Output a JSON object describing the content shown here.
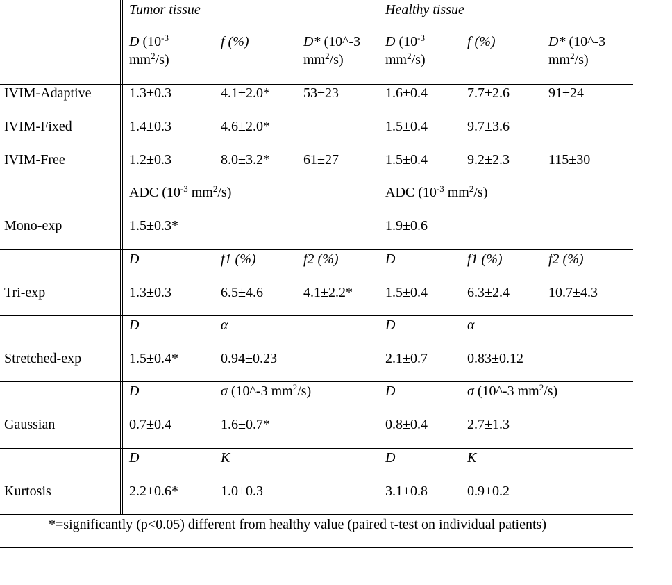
{
  "table": {
    "groups": [
      "Tumor tissue",
      "Healthy tissue"
    ],
    "sections": [
      {
        "header": [
          [
            {
              "text": "D",
              "style": "italic"
            },
            " (10",
            {
              "text": "-3",
              "style": "sup"
            },
            " mm",
            {
              "text": "2",
              "style": "sup"
            },
            "/s)"
          ],
          [
            {
              "text": "f (%)",
              "style": "italic"
            }
          ],
          [
            {
              "text": "D*",
              "style": "italic"
            },
            " (10^-3 mm",
            {
              "text": "2",
              "style": "sup"
            },
            "/s)"
          ],
          [
            {
              "text": "D",
              "style": "italic"
            },
            " (10",
            {
              "text": "-3",
              "style": "sup"
            },
            " mm",
            {
              "text": "2",
              "style": "sup"
            },
            "/s)"
          ],
          [
            {
              "text": "f (%)",
              "style": "italic"
            }
          ],
          [
            {
              "text": "D*",
              "style": "italic"
            },
            " (10^-3 mm",
            {
              "text": "2",
              "style": "sup"
            },
            "/s)"
          ]
        ],
        "rows": [
          {
            "label": "IVIM-Adaptive",
            "cells": [
              "1.3±0.3",
              "4.1±2.0*",
              "53±23",
              "1.6±0.4",
              "7.7±2.6",
              "91±24"
            ]
          },
          {
            "label": "IVIM-Fixed",
            "cells": [
              "1.4±0.3",
              "4.6±2.0*",
              null,
              "1.5±0.4",
              "9.7±3.6",
              null
            ]
          },
          {
            "label": "IVIM-Free",
            "cells": [
              "1.2±0.3",
              "8.0±3.2*",
              "61±27",
              "1.5±0.4",
              "9.2±2.3",
              "115±30"
            ]
          }
        ]
      },
      {
        "header": [
          [
            "ADC (10",
            {
              "text": "-3",
              "style": "sup"
            },
            " mm",
            {
              "text": "2",
              "style": "sup"
            },
            "/s)"
          ],
          null,
          null,
          [
            "ADC (10",
            {
              "text": "-3",
              "style": "sup"
            },
            " mm",
            {
              "text": "2",
              "style": "sup"
            },
            "/s)"
          ],
          null,
          null
        ],
        "rows": [
          {
            "label": "Mono-exp",
            "cells": [
              "1.5±0.3*",
              null,
              null,
              "1.9±0.6",
              null,
              null
            ]
          }
        ]
      },
      {
        "header": [
          [
            {
              "text": "D",
              "style": "italic"
            }
          ],
          [
            {
              "text": "f1 (%)",
              "style": "italic"
            }
          ],
          [
            {
              "text": "f2 (%)",
              "style": "italic"
            }
          ],
          [
            {
              "text": "D",
              "style": "italic"
            }
          ],
          [
            {
              "text": "f1 (%)",
              "style": "italic"
            }
          ],
          [
            {
              "text": "f2 (%)",
              "style": "italic"
            }
          ]
        ],
        "rows": [
          {
            "label": "Tri-exp",
            "cells": [
              "1.3±0.3",
              "6.5±4.6",
              "4.1±2.2*",
              "1.5±0.4",
              "6.3±2.4",
              "10.7±4.3"
            ]
          }
        ]
      },
      {
        "header": [
          [
            {
              "text": "D",
              "style": "italic"
            }
          ],
          [
            {
              "text": "α",
              "style": "italic"
            }
          ],
          null,
          [
            {
              "text": "D",
              "style": "italic"
            }
          ],
          [
            {
              "text": "α",
              "style": "italic"
            }
          ],
          null
        ],
        "rows": [
          {
            "label": "Stretched-exp",
            "cells": [
              "1.5±0.4*",
              "0.94±0.23",
              null,
              "2.1±0.7",
              "0.83±0.12",
              null
            ]
          }
        ]
      },
      {
        "header": [
          [
            {
              "text": "D",
              "style": "italic"
            }
          ],
          [
            {
              "text": "σ",
              "style": "italic"
            },
            " (10^-3 mm",
            {
              "text": "2",
              "style": "sup"
            },
            "/s)"
          ],
          null,
          [
            {
              "text": "D",
              "style": "italic"
            }
          ],
          [
            {
              "text": "σ",
              "style": "italic"
            },
            " (10^-3 mm",
            {
              "text": "2",
              "style": "sup"
            },
            "/s)"
          ],
          null
        ],
        "rows": [
          {
            "label": "Gaussian",
            "cells": [
              "0.7±0.4",
              "1.6±0.7*",
              null,
              "0.8±0.4",
              "2.7±1.3",
              null
            ]
          }
        ]
      },
      {
        "header": [
          [
            {
              "text": "D",
              "style": "italic"
            }
          ],
          [
            {
              "text": "K",
              "style": "italic"
            }
          ],
          null,
          [
            {
              "text": "D",
              "style": "italic"
            }
          ],
          [
            {
              "text": "K",
              "style": "italic"
            }
          ],
          null
        ],
        "rows": [
          {
            "label": "Kurtosis",
            "cells": [
              "2.2±0.6*",
              "1.0±0.3",
              null,
              "3.1±0.8",
              "0.9±0.2",
              null
            ]
          }
        ]
      }
    ],
    "footnote": "*=significantly (p<0.05) different from healthy value (paired t-test on individual patients)"
  }
}
